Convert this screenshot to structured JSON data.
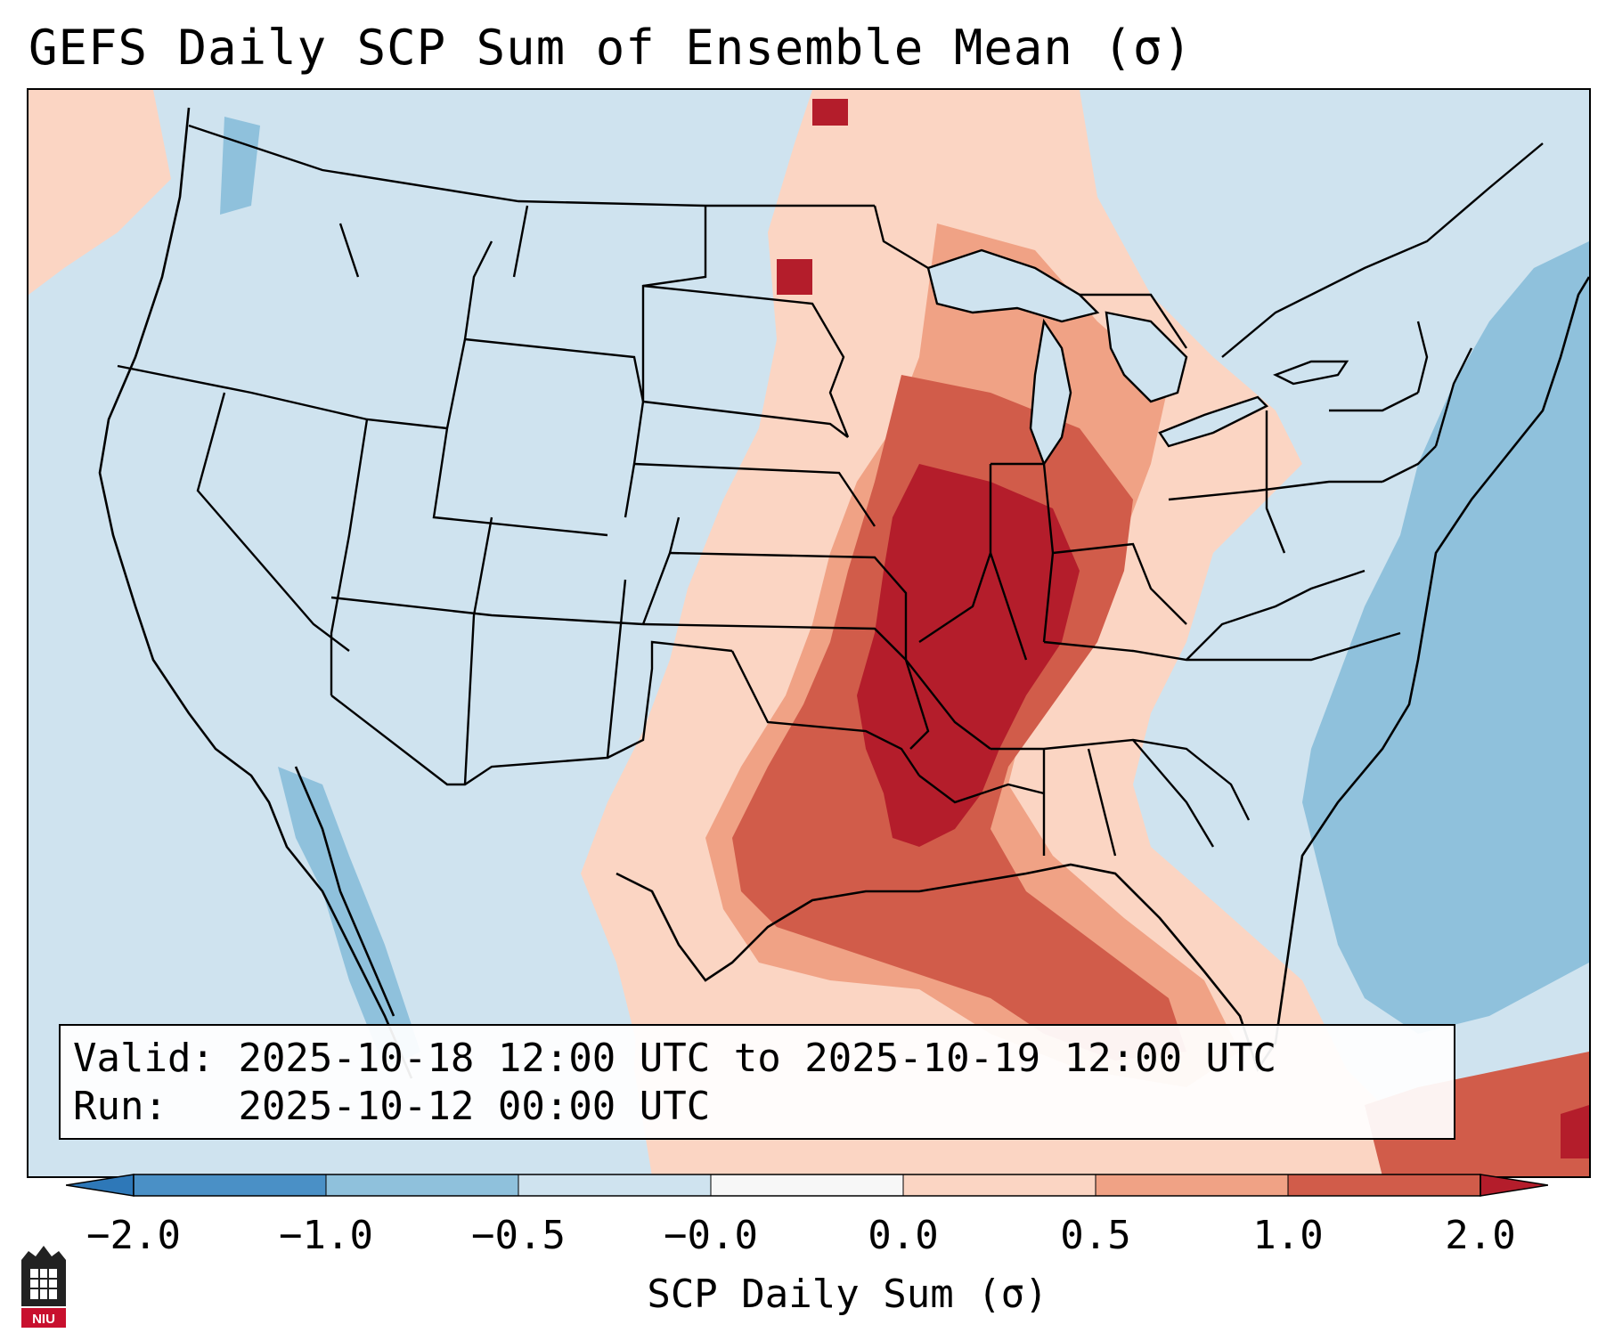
{
  "title": "GEFS Daily SCP Sum of Ensemble Mean (σ)",
  "info": {
    "valid_label": "Valid:",
    "valid_value": "2025-10-18 12:00 UTC to 2025-10-19 12:00 UTC",
    "run_label": "Run:",
    "run_value": "2025-10-12 00:00 UTC"
  },
  "colorbar": {
    "label": "SCP Daily Sum (σ)",
    "ticks": [
      "−2.0",
      "−1.0",
      "−0.5",
      "−0.0",
      "0.0",
      "0.5",
      "1.0",
      "2.0"
    ],
    "bins": [
      {
        "from": -2.0,
        "to": -1.0,
        "color": "#4a90c6"
      },
      {
        "from": -1.0,
        "to": -0.5,
        "color": "#8fc1dc"
      },
      {
        "from": -0.5,
        "to": -0.0,
        "color": "#cfe3ef"
      },
      {
        "from": -0.0,
        "to": 0.0,
        "color": "#f7f7f7"
      },
      {
        "from": 0.0,
        "to": 0.5,
        "color": "#fbd5c3"
      },
      {
        "from": 0.5,
        "to": 1.0,
        "color": "#f0a285"
      },
      {
        "from": 1.0,
        "to": 2.0,
        "color": "#d15c4a"
      }
    ],
    "under_color": "#2e78b8",
    "over_color": "#b41d2b"
  },
  "colors": {
    "ocean_below": "#8fc1dc",
    "neutral_below": "#cfe3ef",
    "low_positive": "#fbd5c3",
    "mid_positive": "#f0a285",
    "high_positive": "#d15c4a",
    "max_positive": "#b41d2b"
  },
  "logo": {
    "text": "NIU"
  }
}
